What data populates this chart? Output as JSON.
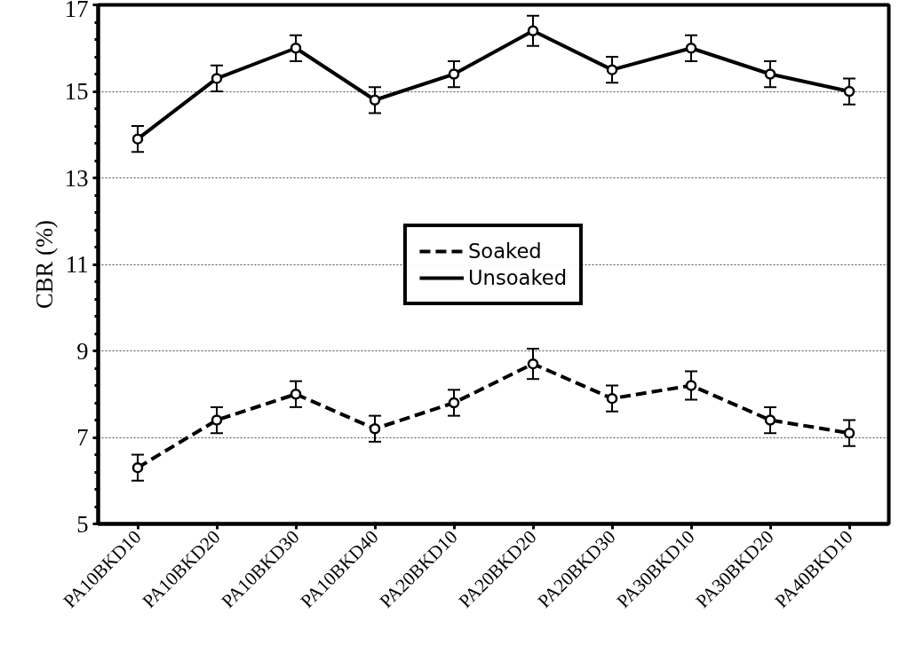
{
  "chart_data": {
    "type": "line",
    "ylabel": "CBR (%)",
    "categories": [
      "PA10BKD10",
      "PA10BKD20",
      "PA10BKD30",
      "PA10BKD40",
      "PA20BKD10",
      "PA20BKD20",
      "PA20BKD30",
      "PA30BKD10",
      "PA30BKD20",
      "PA40BKD10"
    ],
    "series": [
      {
        "name": "Soaked",
        "color": "#000000",
        "line_style": "dashed",
        "values": [
          6.3,
          7.4,
          8.0,
          7.2,
          7.8,
          8.7,
          7.9,
          8.2,
          7.4,
          7.1
        ],
        "errors": [
          0.3,
          0.3,
          0.3,
          0.3,
          0.3,
          0.35,
          0.3,
          0.33,
          0.3,
          0.3
        ]
      },
      {
        "name": "Unsoaked",
        "color": "#000000",
        "line_style": "solid",
        "values": [
          13.9,
          15.3,
          16.0,
          14.8,
          15.4,
          16.4,
          15.5,
          16.0,
          15.4,
          15.0
        ],
        "errors": [
          0.3,
          0.3,
          0.3,
          0.3,
          0.3,
          0.35,
          0.3,
          0.3,
          0.3,
          0.3
        ]
      }
    ],
    "ylim": [
      5,
      17
    ],
    "yticks": [
      5,
      7,
      9,
      11,
      13,
      15,
      17
    ],
    "grid": "y",
    "legend": "center",
    "marker": "circle"
  }
}
